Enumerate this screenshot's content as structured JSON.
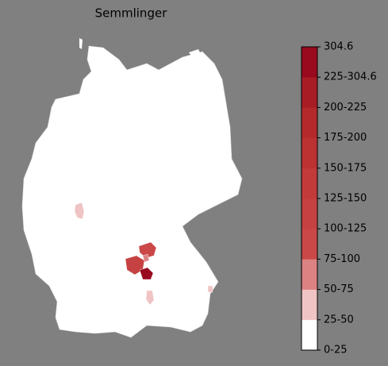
{
  "map": {
    "title": "Semmlinger",
    "colorbar": {
      "labels": [
        "0-25",
        "25-50",
        "50-75",
        "75-100",
        "100-125",
        "125-150",
        "150-175",
        "175-200",
        "200-225",
        "225-304.6",
        "304.6"
      ],
      "colors": [
        "#ffffff",
        "#f0c4c4",
        "#dc8282",
        "#ca4848",
        "#c64141",
        "#c23a3a",
        "#bc3232",
        "#b42a2c",
        "#a81c26",
        "#990a1e"
      ]
    }
  }
}
